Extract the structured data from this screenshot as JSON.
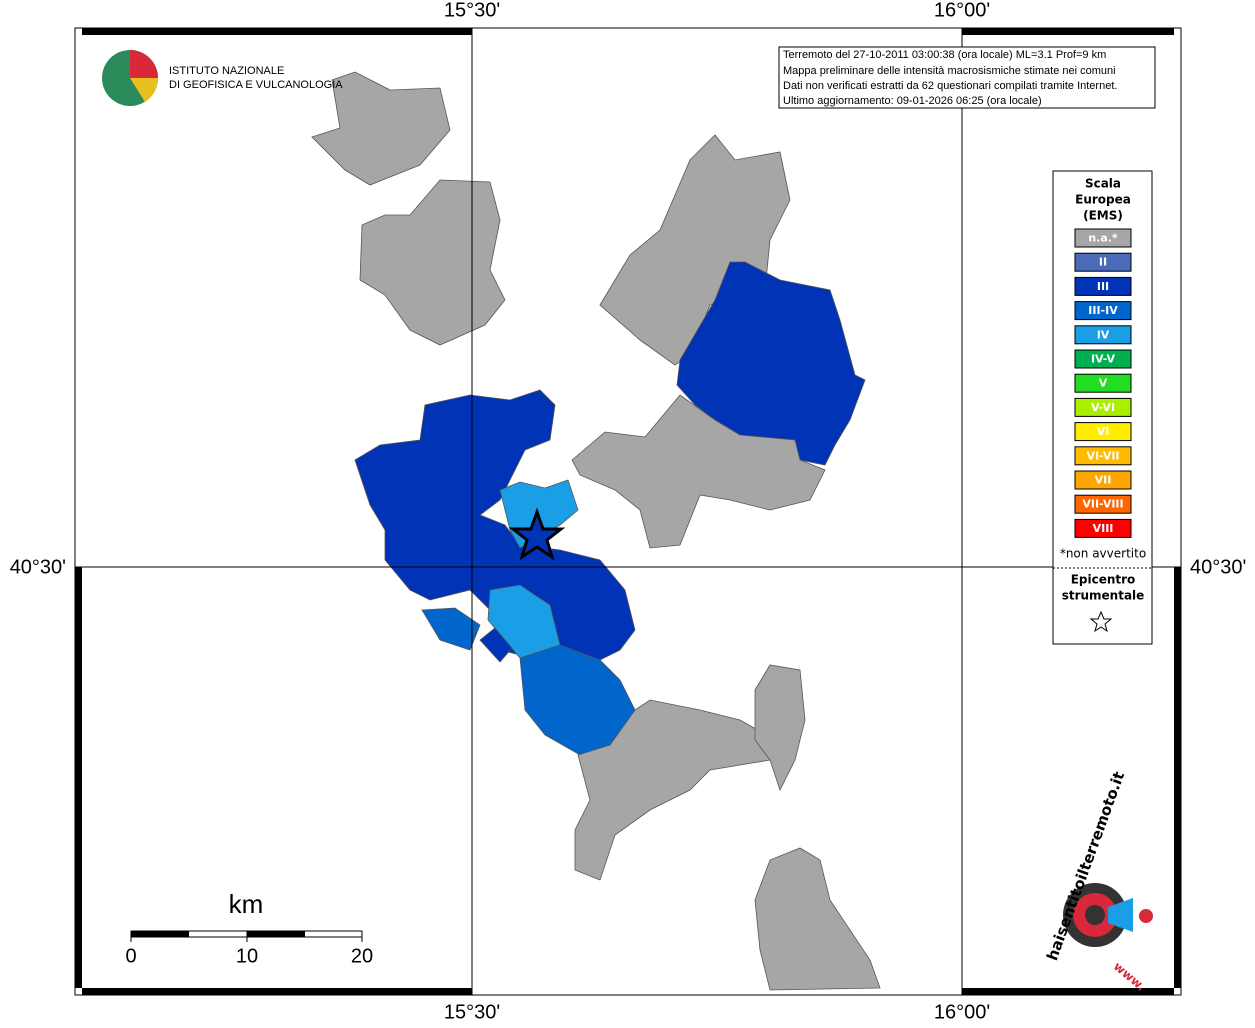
{
  "header": {
    "institute": [
      "ISTITUTO NAZIONALE",
      "DI GEOFISICA E VULCANOLOGIA"
    ]
  },
  "info": [
    "Terremoto del 27-10-2011 03:00:38 (ora locale) ML=3.1 Prof=9 km",
    "Mappa preliminare delle intensità macrosismiche stimate nei comuni",
    "Dati non verificati estratti da 62 questionari compilati tramite Internet.",
    "Ultimo aggiornamento: 09-01-2026 06:25 (ora locale)"
  ],
  "frame": {
    "top": [
      "15°30'",
      "16°00'"
    ],
    "bottom": [
      "15°30'",
      "16°00'"
    ],
    "left": [
      "40°30'"
    ],
    "right": [
      "40°30'"
    ]
  },
  "legend": {
    "title": [
      "Scala",
      "Europea",
      "(EMS)"
    ],
    "items": [
      {
        "label": "n.a.*",
        "color": "#a6a6a6"
      },
      {
        "label": "II",
        "color": "#4a6bb8"
      },
      {
        "label": "III",
        "color": "#0033b5"
      },
      {
        "label": "III-IV",
        "color": "#0066cc"
      },
      {
        "label": "IV",
        "color": "#1a9ee6"
      },
      {
        "label": "IV-V",
        "color": "#00b050"
      },
      {
        "label": "V",
        "color": "#22dd22"
      },
      {
        "label": "V-VI",
        "color": "#aaee00"
      },
      {
        "label": "VI",
        "color": "#ffee00"
      },
      {
        "label": "VI-VII",
        "color": "#ffbb00"
      },
      {
        "label": "VII",
        "color": "#ffa500"
      },
      {
        "label": "VII-VIII",
        "color": "#ff6600"
      },
      {
        "label": "VIII",
        "color": "#ff0000"
      }
    ],
    "note": "*non avvertito",
    "epicenter": [
      "Epicentro",
      "strumentale"
    ]
  },
  "scale": {
    "unit": "km",
    "ticks": [
      0,
      10,
      20
    ]
  },
  "watermark": {
    "site": "haisentitoilterremoto.it",
    "url": "www."
  }
}
